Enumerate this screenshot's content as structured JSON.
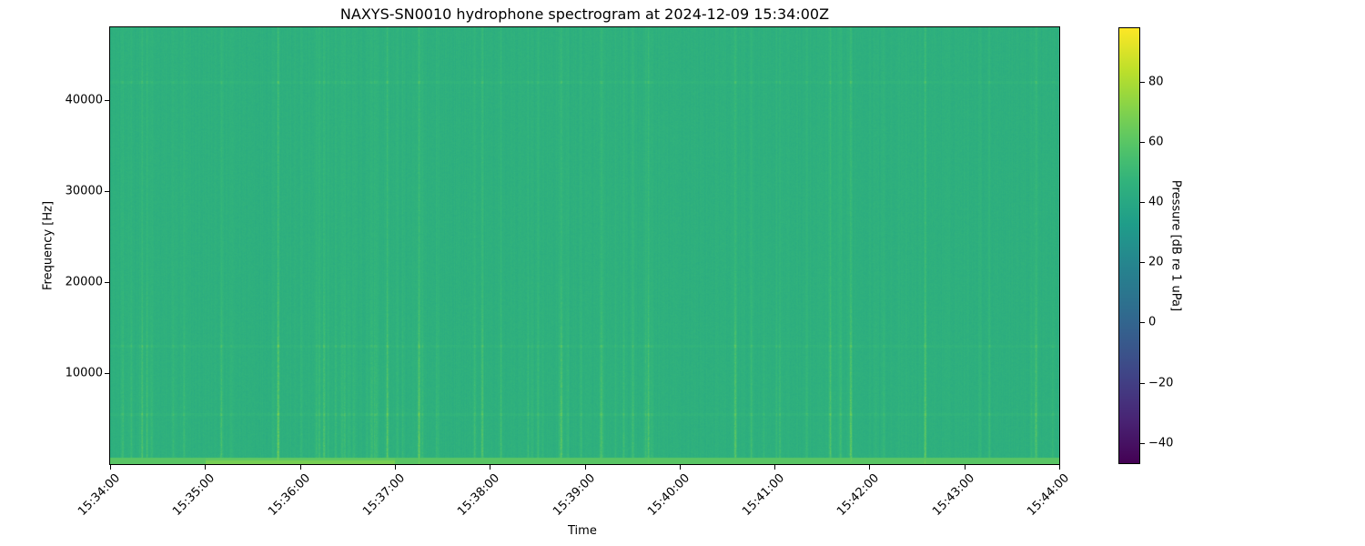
{
  "chart_data": {
    "type": "heatmap",
    "title": "NAXYS-SN0010 hydrophone spectrogram at 2024-12-09 15:34:00Z",
    "xlabel": "Time",
    "ylabel": "Frequency [Hz]",
    "xlim": [
      "15:34:00",
      "15:44:00"
    ],
    "ylim": [
      0,
      48000
    ],
    "x_ticks": [
      "15:34:00",
      "15:35:00",
      "15:36:00",
      "15:37:00",
      "15:38:00",
      "15:39:00",
      "15:40:00",
      "15:41:00",
      "15:42:00",
      "15:43:00",
      "15:44:00"
    ],
    "y_ticks": [
      10000,
      20000,
      30000,
      40000
    ],
    "colormap": "viridis",
    "colorbar": {
      "label": "Pressure [dB re 1 uPa]",
      "range": [
        -47,
        98
      ],
      "ticks": [
        -40,
        -20,
        0,
        20,
        40,
        60,
        80
      ],
      "tick_labels": [
        "−40",
        "−20",
        "0",
        "20",
        "40",
        "60",
        "80"
      ]
    },
    "background_level_db": 45,
    "tone_bands_hz": [
      5500,
      13000,
      42000
    ],
    "low_frequency_band": {
      "max_hz": 600,
      "level_db": 60,
      "strong_from": "15:35:00",
      "strong_to": "15:37:00",
      "strong_level_db": 68
    },
    "transient_events": [
      {
        "time": "15:34:20",
        "level_db": 58
      },
      {
        "time": "15:35:10",
        "level_db": 58
      },
      {
        "time": "15:35:46",
        "level_db": 70
      },
      {
        "time": "15:36:15",
        "level_db": 60
      },
      {
        "time": "15:36:55",
        "level_db": 64
      },
      {
        "time": "15:37:15",
        "level_db": 66
      },
      {
        "time": "15:37:55",
        "level_db": 60
      },
      {
        "time": "15:38:45",
        "level_db": 64
      },
      {
        "time": "15:39:10",
        "level_db": 58
      },
      {
        "time": "15:39:40",
        "level_db": 60
      },
      {
        "time": "15:40:35",
        "level_db": 64
      },
      {
        "time": "15:41:35",
        "level_db": 60
      },
      {
        "time": "15:41:48",
        "level_db": 66
      },
      {
        "time": "15:42:35",
        "level_db": 64
      },
      {
        "time": "15:43:45",
        "level_db": 62
      }
    ]
  }
}
